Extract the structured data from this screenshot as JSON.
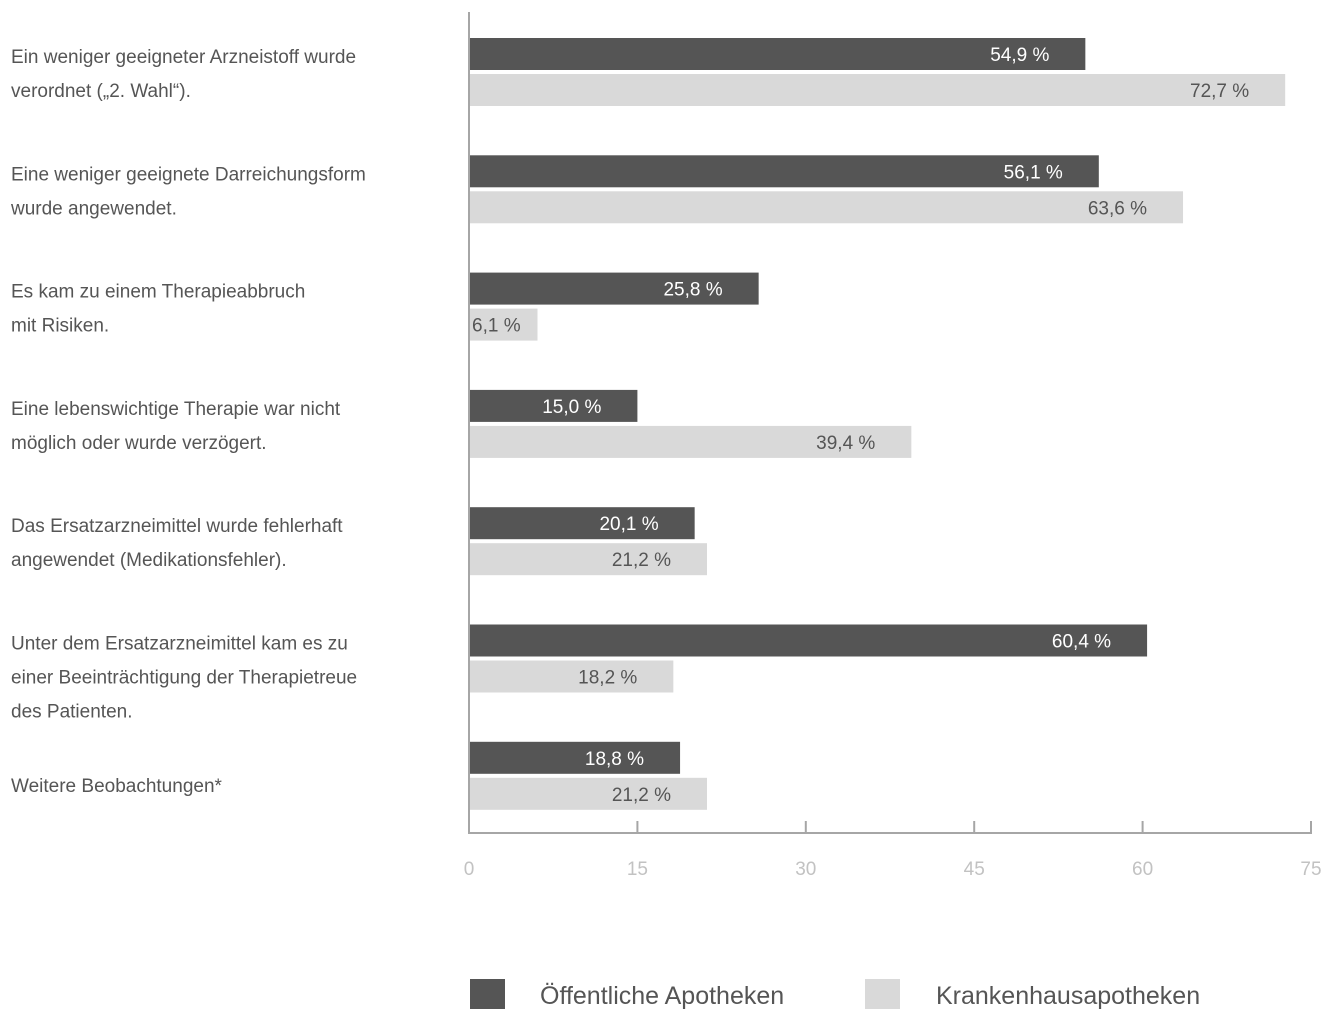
{
  "chart_data": {
    "type": "bar",
    "orientation": "horizontal",
    "categories": [
      [
        "Ein weniger geeigneter Arzneistoff wurde",
        "verordnet („2. Wahl“)."
      ],
      [
        "Eine weniger geeignete Darreichungsform",
        "wurde angewendet."
      ],
      [
        "Es kam zu einem Therapieabbruch",
        "mit Risiken."
      ],
      [
        "Eine lebenswichtige Therapie war nicht",
        "möglich oder wurde verzögert."
      ],
      [
        "Das Ersatzarzneimittel wurde fehlerhaft",
        "angewendet (Medikationsfehler)."
      ],
      [
        "Unter dem Ersatzarzneimittel kam es zu",
        "einer Beeinträchtigung der Therapietreue",
        "des Patienten."
      ],
      [
        "Weitere Beobachtungen*"
      ]
    ],
    "series": [
      {
        "name": "Öffentliche Apotheken",
        "color": "#555555",
        "label_color": "#ffffff",
        "values": [
          54.9,
          56.1,
          25.8,
          15.0,
          20.1,
          60.4,
          18.8
        ],
        "labels": [
          "54,9 %",
          "56,1 %",
          "25,8 %",
          "15,0 %",
          "20,1 %",
          "60,4 %",
          "18,8 %"
        ]
      },
      {
        "name": "Krankenhausapotheken",
        "color": "#d9d9d9",
        "label_color": "#555555",
        "values": [
          72.7,
          63.6,
          6.1,
          39.4,
          21.2,
          18.2,
          21.2
        ],
        "labels": [
          "72,7 %",
          "63,6 %",
          "6,1 %",
          "39,4 %",
          "21,2 %",
          "18,2 %",
          "21,2 %"
        ]
      }
    ],
    "xlim": [
      0,
      75
    ],
    "xticks": [
      0,
      15,
      30,
      45,
      60,
      75
    ],
    "grid": false,
    "legend": "bottom",
    "colors": {
      "axis": "#a6a6a6",
      "tick_text": "#c2c2c2",
      "category_text": "#555555"
    }
  }
}
